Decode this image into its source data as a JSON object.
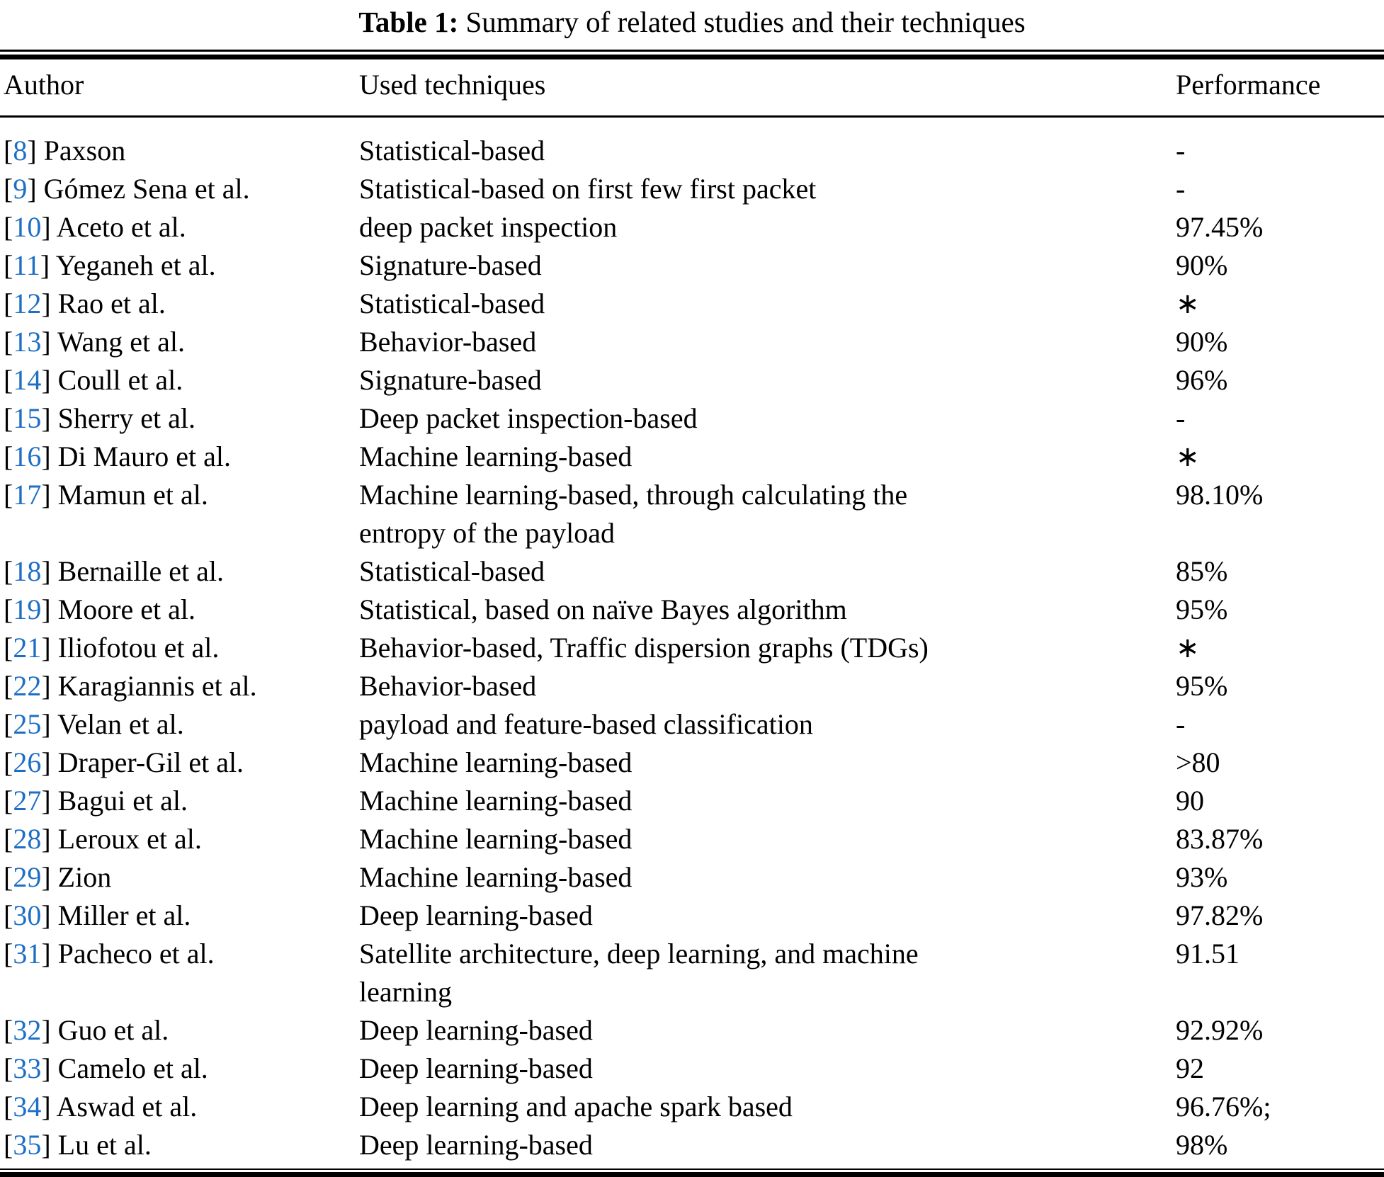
{
  "caption": {
    "prefix": "Table 1:",
    "text": "Summary of related studies and their techniques"
  },
  "columns": [
    "Author",
    "Used techniques",
    "Performance"
  ],
  "rows": [
    {
      "ref": "8",
      "author": "Paxson",
      "technique": "Statistical-based",
      "performance": "-"
    },
    {
      "ref": "9",
      "author": "Gómez Sena et al.",
      "technique": "Statistical-based on first few first packet",
      "performance": "-"
    },
    {
      "ref": "10",
      "author": "Aceto et al.",
      "technique": "deep packet inspection",
      "performance": "97.45%"
    },
    {
      "ref": "11",
      "author": "Yeganeh et al.",
      "technique": "Signature-based",
      "performance": "90%"
    },
    {
      "ref": "12",
      "author": "Rao et al.",
      "technique": "Statistical-based",
      "performance": "∗"
    },
    {
      "ref": "13",
      "author": "Wang et al.",
      "technique": "Behavior-based",
      "performance": "90%"
    },
    {
      "ref": "14",
      "author": "Coull et al.",
      "technique": "Signature-based",
      "performance": "96%"
    },
    {
      "ref": "15",
      "author": "Sherry et al.",
      "technique": "Deep packet inspection-based",
      "performance": "-"
    },
    {
      "ref": "16",
      "author": "Di Mauro et al.",
      "technique": "Machine learning-based",
      "performance": "∗"
    },
    {
      "ref": "17",
      "author": "Mamun et al.",
      "technique": "Machine learning-based, through calculating the\nentropy of the payload",
      "performance": "98.10%"
    },
    {
      "ref": "18",
      "author": "Bernaille et al.",
      "technique": "Statistical-based",
      "performance": "85%"
    },
    {
      "ref": "19",
      "author": "Moore et al.",
      "technique": "Statistical, based on naïve Bayes algorithm",
      "performance": "95%"
    },
    {
      "ref": "21",
      "author": "Iliofotou et al.",
      "technique": "Behavior-based, Traffic dispersion graphs (TDGs)",
      "performance": "∗"
    },
    {
      "ref": "22",
      "author": "Karagiannis et al.",
      "technique": "Behavior-based",
      "performance": "95%"
    },
    {
      "ref": "25",
      "author": "Velan et al.",
      "technique": "payload and feature-based classification",
      "performance": "-"
    },
    {
      "ref": "26",
      "author": "Draper-Gil et al.",
      "technique": "Machine learning-based",
      "performance": ">80"
    },
    {
      "ref": "27",
      "author": "Bagui et al.",
      "technique": "Machine learning-based",
      "performance": "90"
    },
    {
      "ref": "28",
      "author": "Leroux et al.",
      "technique": "Machine learning-based",
      "performance": "83.87%"
    },
    {
      "ref": "29",
      "author": "Zion",
      "technique": "Machine learning-based",
      "performance": "93%"
    },
    {
      "ref": "30",
      "author": "Miller et al.",
      "technique": "Deep learning-based",
      "performance": "97.82%"
    },
    {
      "ref": "31",
      "author": "Pacheco et al.",
      "technique": "Satellite architecture, deep learning, and machine\nlearning",
      "performance": "91.51"
    },
    {
      "ref": "32",
      "author": "Guo et al.",
      "technique": "Deep learning-based",
      "performance": "92.92%"
    },
    {
      "ref": "33",
      "author": "Camelo et al.",
      "technique": "Deep learning-based",
      "performance": "92"
    },
    {
      "ref": "34",
      "author": "Aswad et al.",
      "technique": "Deep learning and apache spark based",
      "performance": "96.76%;"
    },
    {
      "ref": "35",
      "author": "Lu et al.",
      "technique": "Deep learning-based",
      "performance": "98%"
    }
  ],
  "colors": {
    "citation_blue": "#1d6fc6",
    "text": "#000000",
    "background": "#ffffff"
  }
}
